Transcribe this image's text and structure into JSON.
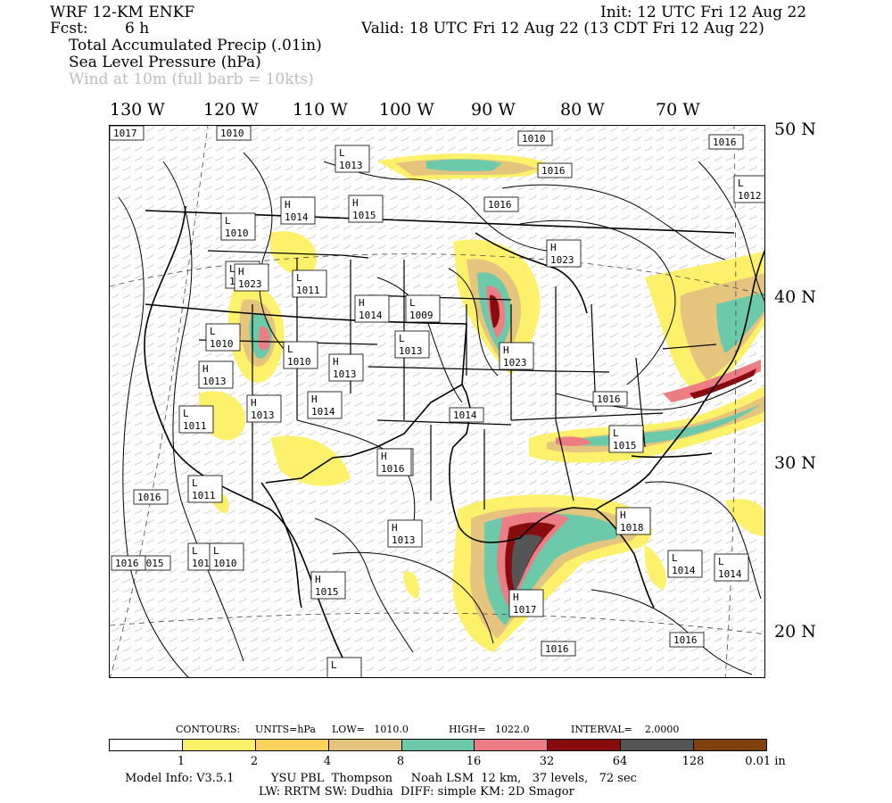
{
  "header": {
    "model": "WRF 12-KM ENKF",
    "fcst_label": "Fcst:",
    "fcst_value": "6 h",
    "init": "Init: 12 UTC Fri 12 Aug 22",
    "valid": "Valid: 18 UTC Fri 12 Aug 22 (13 CDT Fri 12 Aug 22)",
    "field1": "Total Accumulated Precip (.01in)",
    "field2": "Sea Level Pressure (hPa)",
    "field3": "Wind at 10m (full barb = 10kts)"
  },
  "lon_labels": [
    "130 W",
    "120 W",
    "110 W",
    "100 W",
    "90 W",
    "80 W",
    "70 W"
  ],
  "lat_labels": [
    "50 N",
    "40 N",
    "30 N",
    "20 N"
  ],
  "pressure_centers": [
    {
      "t": "",
      "v": "1017"
    },
    {
      "t": "",
      "v": "1010"
    },
    {
      "t": "L",
      "v": "1013"
    },
    {
      "t": "",
      "v": "1010"
    },
    {
      "t": "",
      "v": "1016"
    },
    {
      "t": "",
      "v": "1016"
    },
    {
      "t": "",
      "v": "1016"
    },
    {
      "t": "L",
      "v": "1012"
    },
    {
      "t": "H",
      "v": "1014"
    },
    {
      "t": "H",
      "v": "1015"
    },
    {
      "t": "L",
      "v": "1010"
    },
    {
      "t": "H",
      "v": "1023"
    },
    {
      "t": "L",
      "v": "1010"
    },
    {
      "t": "L",
      "v": "1011"
    },
    {
      "t": "H",
      "v": "1014"
    },
    {
      "t": "L",
      "v": "1009"
    },
    {
      "t": "L",
      "v": "1013"
    },
    {
      "t": "H",
      "v": "1023"
    },
    {
      "t": "L",
      "v": "1010"
    },
    {
      "t": "L",
      "v": "1010"
    },
    {
      "t": "H",
      "v": "1013"
    },
    {
      "t": "H",
      "v": "1023"
    },
    {
      "t": "H",
      "v": "1013"
    },
    {
      "t": "H",
      "v": "1013"
    },
    {
      "t": "L",
      "v": "1011"
    },
    {
      "t": "H",
      "v": "1014"
    },
    {
      "t": "",
      "v": "1016"
    },
    {
      "t": "",
      "v": "1014"
    },
    {
      "t": "L",
      "v": "1015"
    },
    {
      "t": "H",
      "v": "1016"
    },
    {
      "t": "",
      "v": "1016"
    },
    {
      "t": "L",
      "v": "1011"
    },
    {
      "t": "H",
      "v": "1016"
    },
    {
      "t": "",
      "v": "1015"
    },
    {
      "t": "L",
      "v": "1014"
    },
    {
      "t": "H",
      "v": "1013"
    },
    {
      "t": "",
      "v": "1016"
    },
    {
      "t": "L",
      "v": "1010"
    },
    {
      "t": "H",
      "v": "1015"
    },
    {
      "t": "H",
      "v": "1018"
    },
    {
      "t": "L",
      "v": "1014"
    },
    {
      "t": "L",
      "v": "1014"
    },
    {
      "t": "H",
      "v": "1017"
    },
    {
      "t": "",
      "v": "1016"
    },
    {
      "t": "",
      "v": "1016"
    },
    {
      "t": "L",
      "v": ""
    }
  ],
  "contours_line": {
    "label": "CONTOURS:",
    "units": "UNITS=hPa",
    "low": "LOW=   1010.0",
    "high": "HIGH=   1022.0",
    "interval": "INTERVAL=    2.0000"
  },
  "legend": {
    "colors": [
      "#ffffff",
      "#fdf16c",
      "#fad15c",
      "#e5c47e",
      "#6cc9aa",
      "#ec7d84",
      "#880b0e",
      "#555555",
      "#81410e"
    ],
    "ticks": [
      "1",
      "2",
      "4",
      "8",
      "16",
      "32",
      "64",
      "128",
      "0.01 in"
    ]
  },
  "footer": {
    "line1": "Model Info: V3.5.1          YSU PBL  Thompson     Noah LSM  12 km,   37 levels,   72 sec",
    "line2": "LW: RRTM SW: Dudhia  DIFF: simple KM: 2D Smagor"
  }
}
